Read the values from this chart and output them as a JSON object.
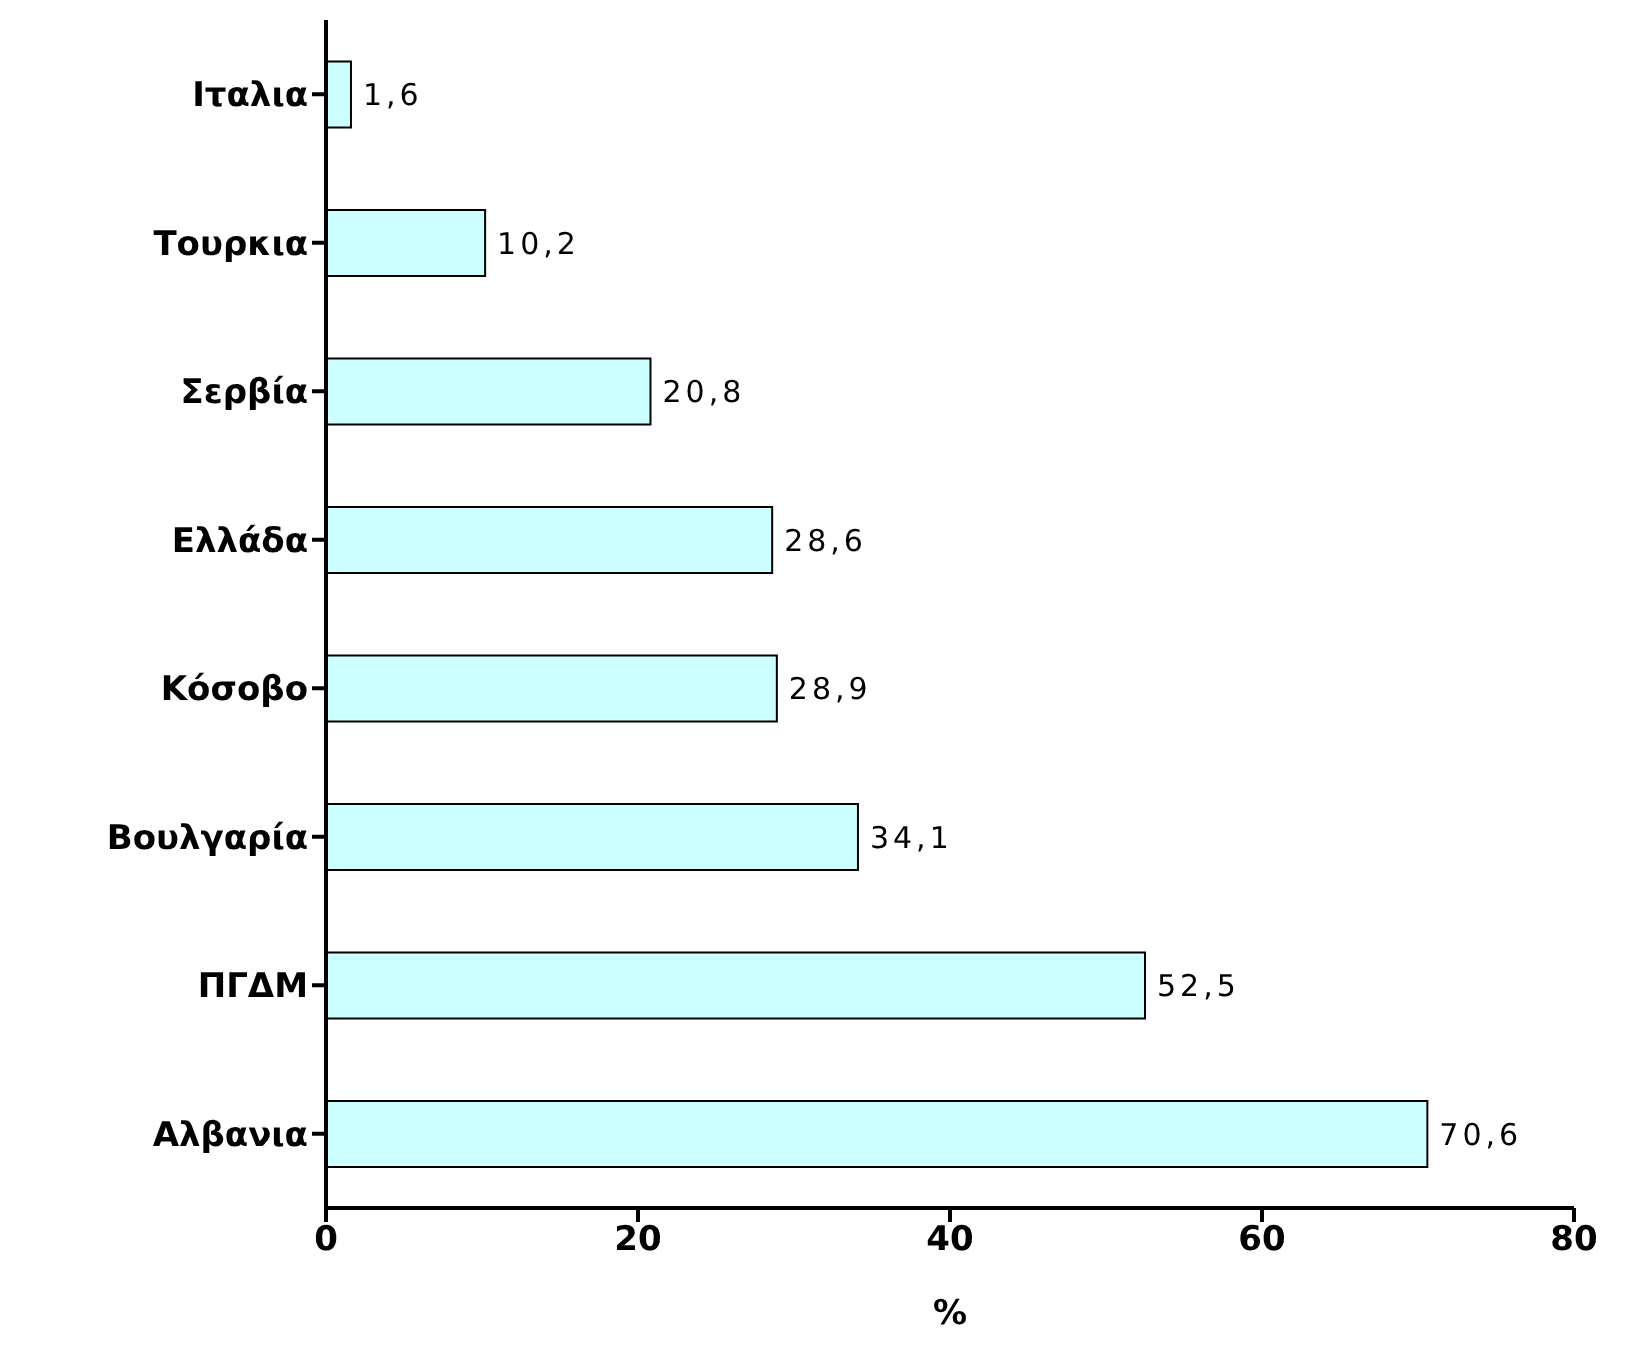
{
  "chart_data": {
    "type": "bar",
    "orientation": "horizontal",
    "categories": [
      "Ιταλια",
      "Τουρκια",
      "Σερβία",
      "Ελλάδα",
      "Κόσοβο",
      "Βουλγαρία",
      "ΠΓΔΜ",
      "Αλβανια"
    ],
    "values": [
      1.6,
      10.2,
      20.8,
      28.6,
      28.9,
      34.1,
      52.5,
      70.6
    ],
    "value_labels": [
      "1,6",
      "10,2",
      "20,8",
      "28,6",
      "28,9",
      "34,1",
      "52,5",
      "70,6"
    ],
    "color": "#ccffff",
    "xlim": [
      0,
      80
    ],
    "xticks": [
      0,
      20,
      40,
      60,
      80
    ],
    "xlabel": "%",
    "grid": false
  }
}
